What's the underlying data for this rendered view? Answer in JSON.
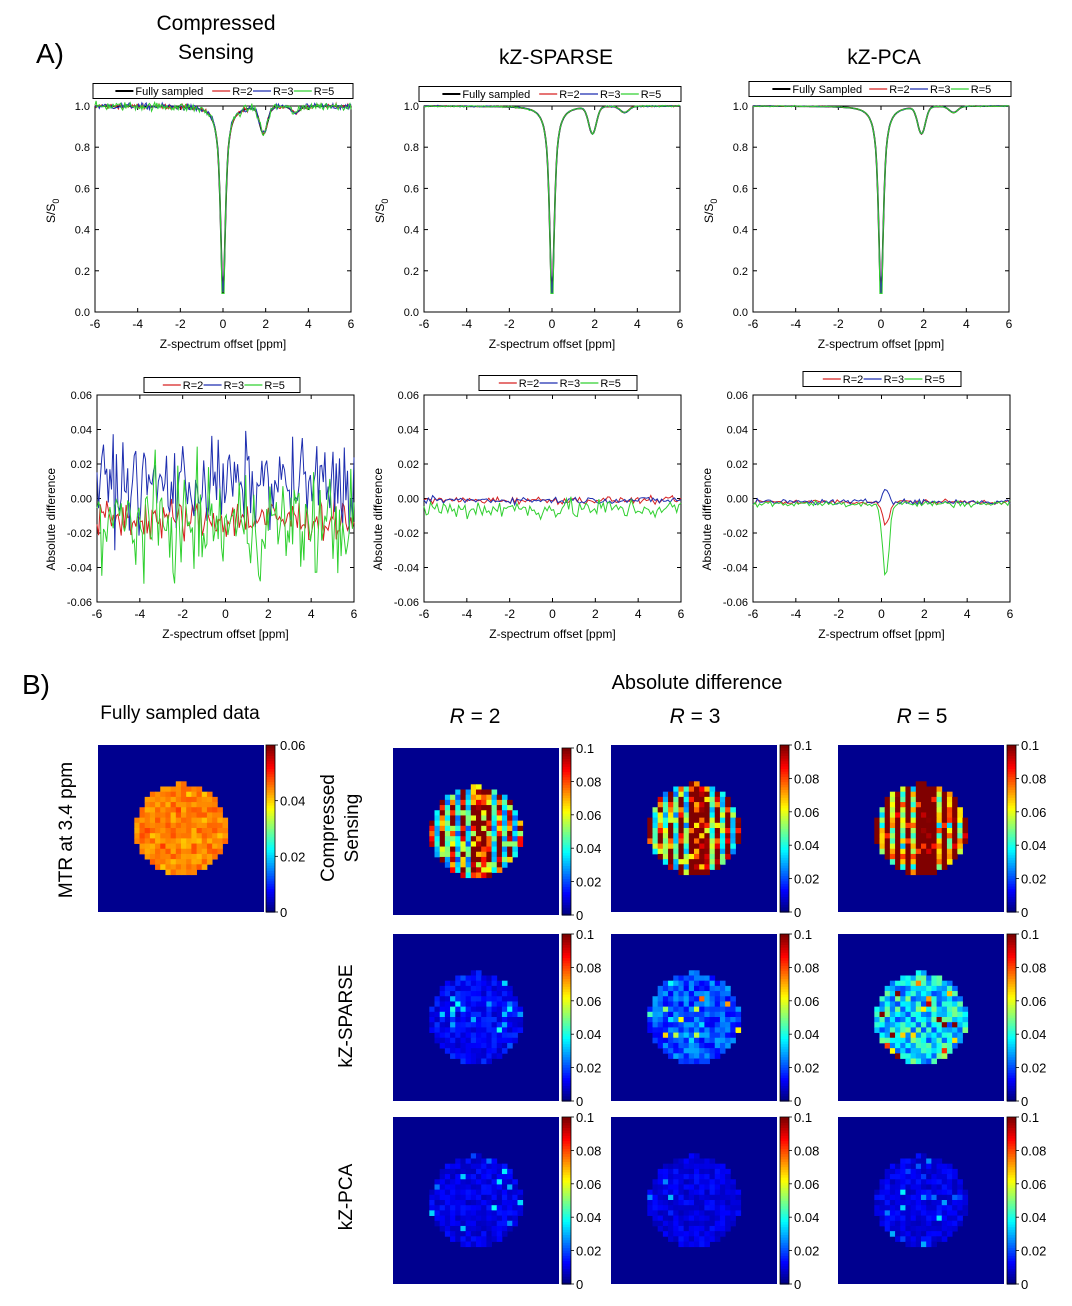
{
  "panel_a": {
    "label": "A)",
    "method_titles": [
      [
        "Compressed",
        "Sensing"
      ],
      [
        "kZ-SPARSE"
      ],
      [
        "kZ-PCA"
      ]
    ],
    "zspec": {
      "xlabel": "Z-spectrum offset [ppm]",
      "ylabel_main": "S/S",
      "ylabel_sub": "0",
      "xticks": [
        "-6",
        "-4",
        "-2",
        "0",
        "2",
        "4",
        "6"
      ],
      "yticks": [
        "0.0",
        "0.2",
        "0.4",
        "0.6",
        "0.8",
        "1.0"
      ],
      "legend_sets": [
        [
          "Fully sampled",
          "R=2",
          "R=3",
          "R=5"
        ],
        [
          "Fully sampled",
          "R=2",
          "R=3",
          "R=5"
        ],
        [
          "Fully Sampled",
          "R=2",
          "R=3",
          "R=5"
        ]
      ]
    },
    "diff": {
      "xlabel": "Z-spectrum offset [ppm]",
      "ylabel": "Absolute difference",
      "xticks": [
        "-6",
        "-4",
        "-2",
        "0",
        "2",
        "4",
        "6"
      ],
      "yticks": [
        "-0.06",
        "-0.04",
        "-0.02",
        "0.00",
        "0.02",
        "0.04",
        "0.06"
      ],
      "legend": [
        "R=2",
        "R=3",
        "R=5"
      ]
    }
  },
  "panel_b": {
    "label": "B)",
    "header": "Absolute difference",
    "fully_sampled_title": "Fully sampled data",
    "row_side_label": "MTR at 3.4 ppm",
    "r_labels": [
      {
        "italic": "R",
        "rest": " = 2"
      },
      {
        "italic": "R",
        "rest": " = 3"
      },
      {
        "italic": "R",
        "rest": " = 5"
      }
    ],
    "method_rows": [
      [
        "Compressed",
        "Sensing"
      ],
      [
        "kZ-SPARSE"
      ],
      [
        "kZ-PCA"
      ]
    ],
    "cbar_mtr_ticks": [
      "0.06",
      "0.04",
      "0.02",
      "0"
    ],
    "cbar_diff_ticks": [
      "0.1",
      "0.08",
      "0.06",
      "0.04",
      "0.02",
      "0"
    ]
  },
  "colors": {
    "fully": "#000000",
    "r2": "#d62020",
    "r3": "#1f2fb0",
    "r5": "#30d030",
    "map_bg": "#00008f"
  },
  "chart_data": [
    {
      "type": "line",
      "title": "Compressed Sensing — Z-spectrum",
      "xlabel": "Z-spectrum offset [ppm]",
      "ylabel": "S/S0",
      "xlim": [
        -6,
        6
      ],
      "ylim": [
        0,
        1.0
      ],
      "series_names": [
        "Fully sampled",
        "R=2",
        "R=3",
        "R=5"
      ],
      "baseline": 1.0,
      "main_dip": {
        "x": 0,
        "min": 0.09
      },
      "secondary_dip": {
        "x": 1.9,
        "min": 0.87
      },
      "noise": [
        0,
        0.012,
        0.015,
        0.02
      ]
    },
    {
      "type": "line",
      "title": "kZ-SPARSE — Z-spectrum",
      "xlabel": "Z-spectrum offset [ppm]",
      "ylabel": "S/S0",
      "xlim": [
        -6,
        6
      ],
      "ylim": [
        0,
        1.0
      ],
      "series_names": [
        "Fully sampled",
        "R=2",
        "R=3",
        "R=5"
      ],
      "baseline": 1.0,
      "main_dip": {
        "x": 0,
        "min": 0.09
      },
      "secondary_dip": {
        "x": 1.9,
        "min": 0.87
      },
      "noise": [
        0,
        0.003,
        0.003,
        0.004
      ]
    },
    {
      "type": "line",
      "title": "kZ-PCA — Z-spectrum",
      "xlabel": "Z-spectrum offset [ppm]",
      "ylabel": "S/S0",
      "xlim": [
        -6,
        6
      ],
      "ylim": [
        0,
        1.0
      ],
      "series_names": [
        "Fully Sampled",
        "R=2",
        "R=3",
        "R=5"
      ],
      "baseline": 1.0,
      "main_dip": {
        "x": 0,
        "min": 0.09
      },
      "secondary_dip": {
        "x": 1.9,
        "min": 0.87
      },
      "noise": [
        0,
        0.002,
        0.002,
        0.003
      ]
    },
    {
      "type": "line",
      "title": "Compressed Sensing — Absolute difference",
      "xlabel": "Z-spectrum offset [ppm]",
      "ylabel": "Absolute difference",
      "xlim": [
        -6,
        6
      ],
      "ylim": [
        -0.06,
        0.06
      ],
      "series_names": [
        "R=2",
        "R=3",
        "R=5"
      ],
      "amplitude": [
        0.012,
        0.025,
        0.03
      ],
      "offset": [
        -0.012,
        0.008,
        -0.015
      ]
    },
    {
      "type": "line",
      "title": "kZ-SPARSE — Absolute difference",
      "xlabel": "Z-spectrum offset [ppm]",
      "ylabel": "Absolute difference",
      "xlim": [
        -6,
        6
      ],
      "ylim": [
        -0.06,
        0.06
      ],
      "series_names": [
        "R=2",
        "R=3",
        "R=5"
      ],
      "amplitude": [
        0.002,
        0.002,
        0.006
      ],
      "offset": [
        -0.001,
        -0.001,
        -0.006
      ]
    },
    {
      "type": "line",
      "title": "kZ-PCA — Absolute difference",
      "xlabel": "Z-spectrum offset [ppm]",
      "ylabel": "Absolute difference",
      "xlim": [
        -6,
        6
      ],
      "ylim": [
        -0.06,
        0.06
      ],
      "series_names": [
        "R=2",
        "R=3",
        "R=5"
      ],
      "amplitude": [
        0.0015,
        0.0015,
        0.002
      ],
      "offset": [
        -0.002,
        -0.002,
        -0.003
      ],
      "dip_at_zero": [
        -0.014,
        0.008,
        -0.043
      ]
    },
    {
      "type": "heatmap",
      "title": "MTR at 3.4 ppm — Fully sampled data",
      "clim": [
        0,
        0.06
      ],
      "mean_value": 0.045
    },
    {
      "type": "heatmap",
      "title": "Absolute difference maps",
      "clim": [
        0,
        0.1
      ],
      "rows": [
        "Compressed Sensing",
        "kZ-SPARSE",
        "kZ-PCA"
      ],
      "cols": [
        "R = 2",
        "R = 3",
        "R = 5"
      ],
      "mean_values": [
        [
          0.06,
          0.07,
          0.095
        ],
        [
          0.012,
          0.02,
          0.035
        ],
        [
          0.01,
          0.01,
          0.01
        ]
      ]
    }
  ]
}
